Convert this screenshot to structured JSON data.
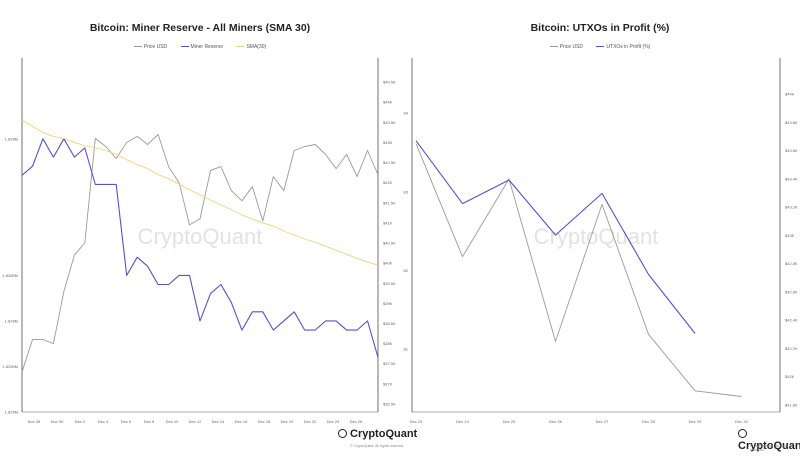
{
  "watermark": "CryptoQuant",
  "footer": {
    "logo_text": "CryptoQuant",
    "rights": "© CryptoQuant. All rights reserved."
  },
  "colors": {
    "price": "#9a9a9a",
    "miner_reserve": "#5a4fcf",
    "sma": "#f2d27a",
    "utxo": "#5a4fcf",
    "axis": "#333333",
    "watermark": "#e2e2e2"
  },
  "chart_data": [
    {
      "type": "line",
      "title": "Bitcoin: Miner Reserve - All Miners (SMA 30)",
      "legend": [
        "Price USD",
        "Miner Reserve",
        "SMA(30)"
      ],
      "x_ticks": [
        "Nov 28",
        "Nov 30",
        "Dec 2",
        "Dec 4",
        "Dec 6",
        "Dec 8",
        "Dec 10",
        "Dec 12",
        "Dec 14",
        "Dec 16",
        "Dec 18",
        "Dec 20",
        "Dec 22",
        "Dec 24",
        "Dec 26"
      ],
      "y_left_ticks": [
        "1.828M",
        "1.8265M",
        "1.826M",
        "1.8255M",
        "1.825M"
      ],
      "y_left_range": [
        1.825,
        1.8288
      ],
      "y_right_ticks": [
        "$44.5K",
        "$44K",
        "$43.5K",
        "$43K",
        "$42.5K",
        "$42K",
        "$41.5K",
        "$41K",
        "$40.5K",
        "$40K",
        "$39.5K",
        "$39K",
        "$38.5K",
        "$38K",
        "$37.5K",
        "$37K",
        "$36.5K"
      ],
      "y_right_range": [
        36.3,
        44.9
      ],
      "series": [
        {
          "name": "Price USD",
          "axis": "right",
          "values": [
            37.3,
            38.1,
            38.1,
            38.0,
            39.3,
            40.2,
            40.5,
            43.1,
            42.9,
            42.6,
            43.0,
            43.15,
            42.95,
            43.2,
            42.4,
            42.0,
            40.95,
            41.1,
            42.3,
            42.4,
            41.8,
            41.55,
            41.9,
            41.05,
            42.15,
            41.8,
            42.8,
            42.9,
            42.95,
            42.7,
            42.35,
            42.7,
            42.15,
            42.8,
            42.2
          ]
        },
        {
          "name": "Miner Reserve",
          "axis": "left",
          "values": [
            1.8276,
            1.8277,
            1.828,
            1.8278,
            1.828,
            1.8278,
            1.8279,
            1.8275,
            1.8275,
            1.8275,
            1.8265,
            1.8267,
            1.8266,
            1.8264,
            1.8264,
            1.8265,
            1.8265,
            1.826,
            1.8263,
            1.8264,
            1.8262,
            1.8259,
            1.8261,
            1.8261,
            1.8259,
            1.826,
            1.8261,
            1.8259,
            1.8259,
            1.826,
            1.826,
            1.8259,
            1.8259,
            1.826,
            1.8256
          ]
        },
        {
          "name": "SMA(30)",
          "axis": "right",
          "values": [
            43.55,
            43.4,
            43.25,
            43.15,
            43.1,
            43.0,
            42.92,
            42.87,
            42.8,
            42.7,
            42.57,
            42.45,
            42.35,
            42.2,
            42.1,
            41.96,
            41.82,
            41.7,
            41.57,
            41.45,
            41.33,
            41.2,
            41.1,
            41.0,
            40.92,
            40.8,
            40.7,
            40.6,
            40.52,
            40.42,
            40.32,
            40.22,
            40.12,
            40.03,
            39.95
          ]
        }
      ]
    },
    {
      "type": "line",
      "title": "Bitcoin: UTXOs in Profit (%)",
      "legend": [
        "Price USD",
        "UTXOs in Profit (%)"
      ],
      "x_ticks": [
        "Dec 23",
        "Dec 24",
        "Dec 25",
        "Dec 26",
        "Dec 27",
        "Dec 28",
        "Dec 29",
        "Dec 30"
      ],
      "y_left_ticks": [
        "84",
        "83",
        "82",
        "81"
      ],
      "y_left_range": [
        80.2,
        84.6
      ],
      "y_right_ticks": [
        "$44K",
        "$43.8K",
        "$43.6K",
        "$43.4K",
        "$43.2K",
        "$43K",
        "$42.8K",
        "$42.6K",
        "$42.4K",
        "$42.2K",
        "$42K",
        "$41.8K"
      ],
      "y_right_range": [
        41.75,
        44.2
      ],
      "series": [
        {
          "name": "Price USD",
          "axis": "right",
          "x": [
            0,
            1,
            2,
            3,
            4,
            5,
            6,
            7
          ],
          "values": [
            43.65,
            42.85,
            43.4,
            42.25,
            43.22,
            42.3,
            41.9,
            41.86
          ]
        },
        {
          "name": "UTXOs in Profit (%)",
          "axis": "left",
          "x": [
            0,
            1,
            2,
            3,
            4,
            5,
            6
          ],
          "values": [
            83.65,
            82.85,
            83.15,
            82.45,
            82.98,
            81.95,
            81.2
          ]
        }
      ]
    }
  ]
}
